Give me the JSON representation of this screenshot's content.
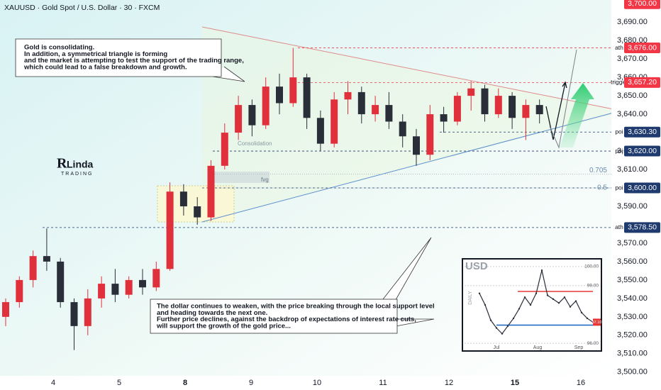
{
  "chart_data": {
    "type": "candlestick",
    "title": "XAUUSD · Gold Spot / U.S. Dollar · 30 · FXCM",
    "brand": "Linda",
    "brand_sub": "TRADING",
    "up_color": "#e0303c",
    "down_color": "#2a2e39",
    "ylim": [
      3498,
      3702
    ],
    "yticks": [
      {
        "value": 3500,
        "label": "3,500.00"
      },
      {
        "value": 3510,
        "label": "3,510.00"
      },
      {
        "value": 3520,
        "label": "3,520.00"
      },
      {
        "value": 3530,
        "label": "3,530.00"
      },
      {
        "value": 3540,
        "label": "3,540.00"
      },
      {
        "value": 3550,
        "label": "3,550.00"
      },
      {
        "value": 3560,
        "label": "3,560.00"
      },
      {
        "value": 3570,
        "label": "3,570.00"
      },
      {
        "value": 3590,
        "label": "3,590.00"
      },
      {
        "value": 3610,
        "label": "3,610.00"
      },
      {
        "value": 3620,
        "label": "3,620.00"
      },
      {
        "value": 3640,
        "label": "3,640.00"
      },
      {
        "value": 3650,
        "label": "3,650.00"
      },
      {
        "value": 3660,
        "label": "3,660.00"
      },
      {
        "value": 3670,
        "label": "3,670.00"
      },
      {
        "value": 3680,
        "label": "3,680.00"
      },
      {
        "value": 3690,
        "label": "3,690.00"
      }
    ],
    "x_labels": [
      "4",
      "5",
      "8",
      "9",
      "10",
      "11",
      "12",
      "15",
      "16"
    ],
    "open": [
      3530,
      3538,
      3550,
      3563,
      3560,
      3538,
      3525,
      3540,
      3548,
      3542,
      3550,
      3546,
      3556,
      3598,
      3590,
      3584,
      3612,
      3630,
      3645,
      3634,
      3655,
      3646,
      3660,
      3638,
      3624,
      3648,
      3652,
      3640,
      3645,
      3636,
      3628,
      3618,
      3640,
      3636,
      3650,
      3654,
      3640,
      3650,
      3638,
      3645
    ],
    "high": [
      3540,
      3552,
      3566,
      3578,
      3562,
      3540,
      3545,
      3552,
      3556,
      3552,
      3556,
      3560,
      3603,
      3602,
      3595,
      3615,
      3635,
      3650,
      3648,
      3660,
      3662,
      3676,
      3662,
      3642,
      3652,
      3658,
      3655,
      3650,
      3652,
      3640,
      3632,
      3645,
      3644,
      3652,
      3658,
      3656,
      3654,
      3652,
      3648,
      3648
    ],
    "low": [
      3525,
      3535,
      3546,
      3555,
      3535,
      3512,
      3520,
      3535,
      3538,
      3540,
      3542,
      3544,
      3555,
      3585,
      3580,
      3582,
      3610,
      3626,
      3628,
      3632,
      3640,
      3644,
      3632,
      3620,
      3622,
      3640,
      3635,
      3636,
      3632,
      3622,
      3612,
      3615,
      3630,
      3634,
      3642,
      3636,
      3638,
      3632,
      3626,
      3635
    ],
    "close": [
      3538,
      3550,
      3563,
      3560,
      3538,
      3525,
      3540,
      3548,
      3542,
      3550,
      3546,
      3556,
      3598,
      3590,
      3584,
      3612,
      3630,
      3645,
      3634,
      3655,
      3646,
      3660,
      3638,
      3624,
      3648,
      3652,
      3640,
      3645,
      3636,
      3628,
      3618,
      3640,
      3636,
      3650,
      3654,
      3640,
      3650,
      3638,
      3645,
      3640
    ],
    "levels": [
      {
        "value": 3700,
        "label": "3,700.00",
        "color": "#f23645"
      },
      {
        "value": 3676,
        "label": "3,676.00",
        "name": "ath",
        "color": "#f23645"
      },
      {
        "value": 3657.2,
        "label": "3,657.20",
        "name": "trigger",
        "color": "#f23645"
      },
      {
        "value": 3630.3,
        "label": "3,630.30",
        "name": "poi",
        "color": "#1e3a6e"
      },
      {
        "value": 3620,
        "label": "3,620.00",
        "name": "poi",
        "color": "#1e3a6e"
      },
      {
        "value": 3600,
        "label": "3,600.00",
        "name": "poi",
        "color": "#1e3a6e"
      },
      {
        "value": 3578.5,
        "label": "3,578.50",
        "name": "ath",
        "color": "#1e3a6e"
      }
    ],
    "fib": [
      {
        "value": 3607.5,
        "label": "0.705"
      },
      {
        "value": 3600,
        "label": "0.5"
      }
    ],
    "zone_labels": [
      "Consolidation",
      "fvg"
    ],
    "annotations": [
      [
        "Gold is consolidating.",
        "In addition, a symmetrical triangle is forming",
        "and the market is attempting to test the support of the trading range,",
        "which could lead to a false breakdown and growth."
      ],
      [
        "The dollar continues to weaken, with the price breaking through the local support level",
        "and heading towards the next one.",
        "Further price declines, against the backdrop of expectations of interest rate cuts,",
        "will support the growth of the gold price..."
      ]
    ],
    "inset": {
      "title": "USD",
      "axis_label": "DAILY",
      "color": "#2a2e39",
      "ylim": [
        95.6,
        100.4
      ],
      "yticks": [
        {
          "value": 100,
          "label": "100.00"
        },
        {
          "value": 99,
          "label": "99.00"
        },
        {
          "value": 96,
          "label": "96.00"
        }
      ],
      "last": {
        "value": 97.1,
        "label": "97.10"
      },
      "levels": [
        98.7,
        96.95
      ],
      "x_labels": [
        "Jul",
        "Aug",
        "Sep"
      ],
      "values": [
        98.6,
        98.0,
        97.2,
        96.8,
        96.5,
        96.9,
        97.3,
        97.8,
        98.4,
        98.0,
        98.6,
        99.8,
        98.5,
        98.3,
        98.1,
        98.4,
        97.9,
        98.2,
        97.6,
        97.3,
        97.1
      ]
    }
  }
}
